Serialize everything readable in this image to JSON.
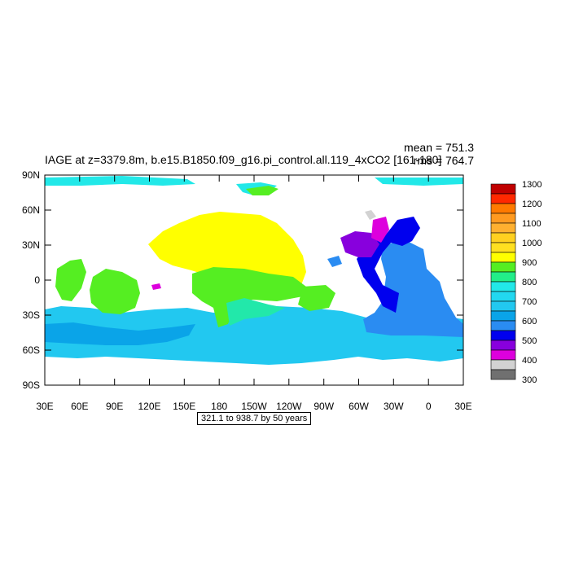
{
  "title": "IAGE at z=3379.8m, b.e15.B1850.f09_g16.pi_control.all.119_4xCO2 [161-180]",
  "stats": {
    "mean": "mean = 751.3",
    "rms": "rms = 764.7"
  },
  "caption": "321.1 to 938.7 by 50 years",
  "lat_labels": [
    "90N",
    "60N",
    "30N",
    "0",
    "30S",
    "60S",
    "90S"
  ],
  "lon_labels": [
    "30E",
    "60E",
    "90E",
    "120E",
    "150E",
    "180",
    "150W",
    "120W",
    "90W",
    "60W",
    "30W",
    "0",
    "30E"
  ],
  "colorbar": {
    "labels": [
      "1300",
      "1200",
      "1100",
      "1000",
      "900",
      "800",
      "700",
      "600",
      "500",
      "400",
      "300"
    ],
    "colors": [
      "#c00000",
      "#ff2800",
      "#ff7a00",
      "#ffb030",
      "#ffd020",
      "#ffff00",
      "#55ee22",
      "#22ee88",
      "#22e8e8",
      "#22c8f0",
      "#0090ff",
      "#2255ee",
      "#0000ee",
      "#8800dd",
      "#dd00dd",
      "#d2d2d2",
      "#707070"
    ]
  },
  "colors": {
    "north_pacific": "#ffff00",
    "tropical_band": "#55ee22",
    "southern_ocean": "#22c8f0",
    "arctic": "#22e8e8",
    "atlantic": "#2a8cf2",
    "north_atlantic_deep": "#0000ee",
    "labrador": "#8800dd",
    "greenland": "#dd00dd"
  }
}
